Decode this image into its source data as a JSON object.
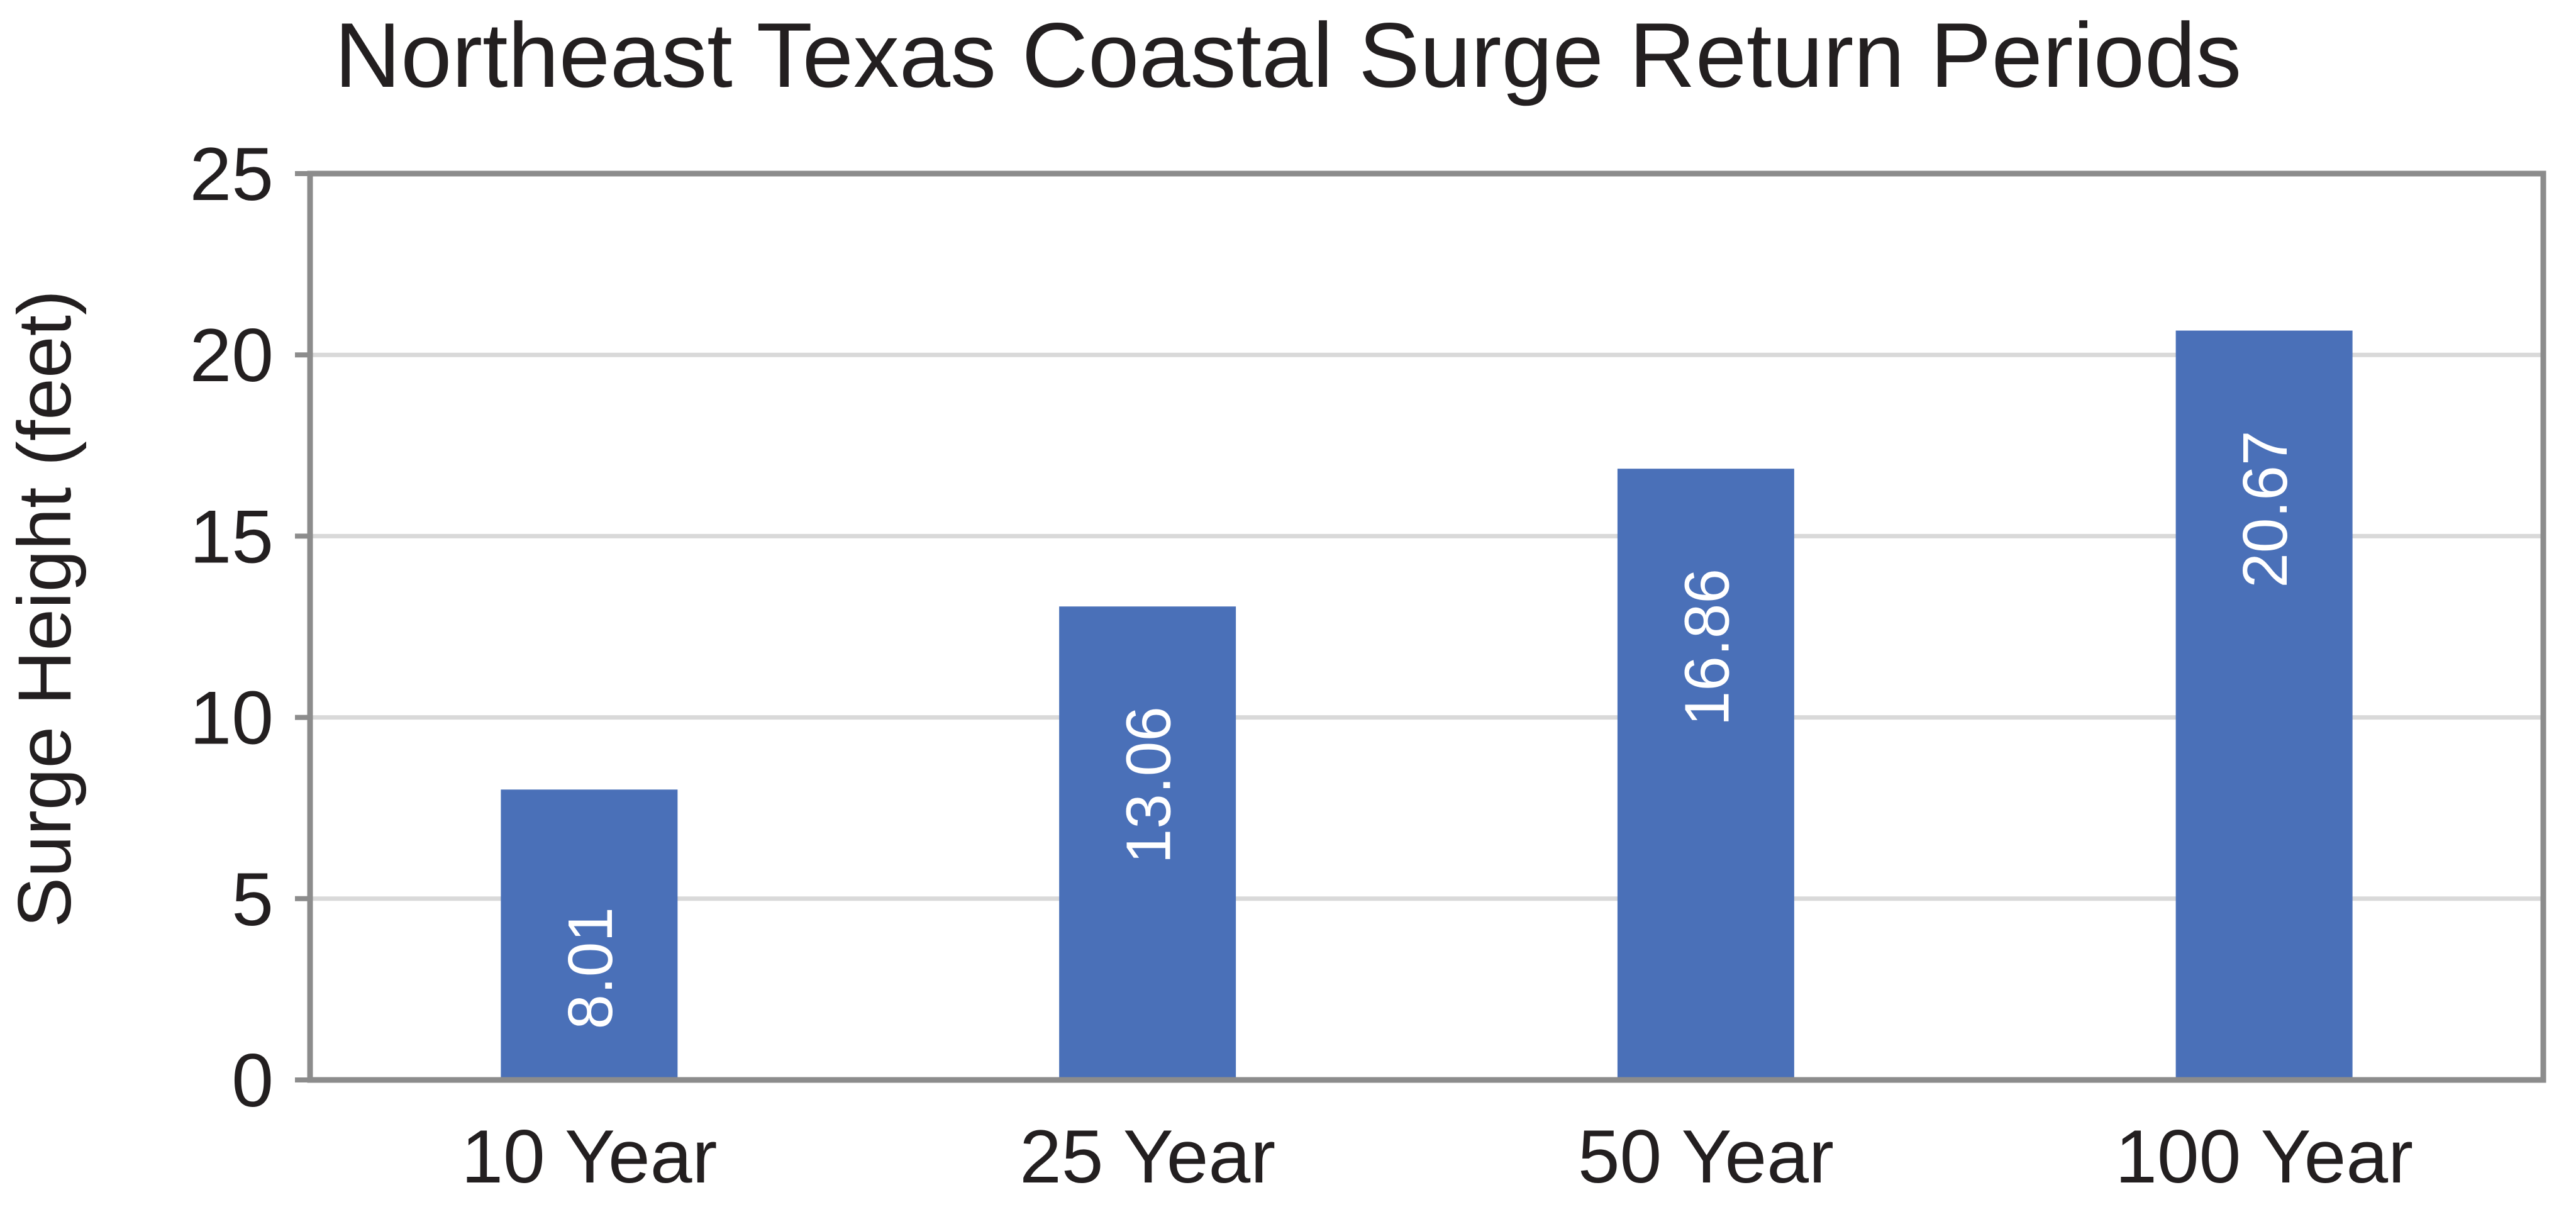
{
  "chart_data": {
    "type": "bar",
    "title": "Northeast Texas Coastal Surge Return Periods",
    "xlabel": "",
    "ylabel": "Surge Height (feet)",
    "categories": [
      "10 Year",
      "25 Year",
      "50 Year",
      "100 Year"
    ],
    "values": [
      8.01,
      13.06,
      16.86,
      20.67
    ],
    "value_labels": [
      "8.01",
      "13.06",
      "16.86",
      "20.67"
    ],
    "ylim": [
      0,
      25
    ],
    "yticks": [
      "0",
      "5",
      "10",
      "15",
      "20",
      "25"
    ],
    "grid": true,
    "legend": "none",
    "colors": {
      "bar": "#4a70b8",
      "grid": "#d9d9d9",
      "frame": "#8c8c8c",
      "text": "#231f20",
      "value_label": "#ffffff"
    }
  }
}
